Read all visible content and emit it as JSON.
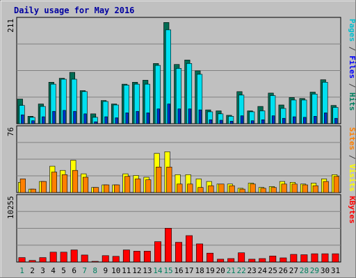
{
  "chart_data": {
    "type": "bar",
    "title": "Daily usage for May 2016",
    "categories": [
      "1",
      "2",
      "3",
      "4",
      "5",
      "6",
      "7",
      "8",
      "9",
      "10",
      "11",
      "12",
      "13",
      "14",
      "15",
      "16",
      "17",
      "18",
      "19",
      "20",
      "21",
      "22",
      "23",
      "24",
      "25",
      "26",
      "27",
      "28",
      "29",
      "30",
      "31"
    ],
    "weekend_days": [
      "1",
      "7",
      "8",
      "14",
      "15",
      "21",
      "22",
      "28",
      "29"
    ],
    "panels": [
      {
        "id": "hits-files-pages",
        "max_label": "211",
        "ymax": 211,
        "right_label": [
          "Pages",
          " / ",
          "Files",
          " / ",
          "Hits"
        ],
        "right_label_colors": [
          "#00c0d0",
          "#404040",
          "#0000ff",
          "#404040",
          "#008060"
        ],
        "series": [
          {
            "name": "Hits",
            "color": "#006c54",
            "values": [
              50,
              15,
              40,
              84,
              92,
              104,
              67,
              20,
              47,
              40,
              80,
              84,
              88,
              122,
              205,
              120,
              129,
              107,
              28,
              26,
              17,
              65,
              26,
              35,
              62,
              38,
              53,
              51,
              64,
              89,
              37
            ]
          },
          {
            "name": "Files",
            "color": "#00e0f0",
            "values": [
              37,
              13,
              35,
              80,
              90,
              90,
              65,
              13,
              45,
              38,
              78,
              80,
              80,
              118,
              190,
              112,
              122,
              100,
              24,
              20,
              15,
              58,
              24,
              26,
              57,
              31,
              48,
              48,
              60,
              84,
              33
            ]
          },
          {
            "name": "Pages",
            "color": "#0030c8",
            "values": [
              18,
              6,
              14,
              25,
              27,
              25,
              20,
              4,
              14,
              12,
              22,
              25,
              22,
              30,
              40,
              30,
              30,
              28,
              8,
              7,
              5,
              16,
              6,
              8,
              16,
              11,
              14,
              13,
              15,
              22,
              11
            ]
          }
        ]
      },
      {
        "id": "visits-sites",
        "max_label": "76",
        "ymax": 76,
        "right_label": [
          "Sites",
          " / ",
          "Visits"
        ],
        "right_label_colors": [
          "#ff8000",
          "#404040",
          "#ffff00"
        ],
        "series": [
          {
            "name": "Visits",
            "color": "#ffff00",
            "values": [
              12,
              4,
              13,
              31,
              26,
              38,
              22,
              6,
              9,
              9,
              22,
              20,
              18,
              46,
              48,
              21,
              21,
              16,
              13,
              10,
              10,
              5,
              11,
              6,
              7,
              13,
              12,
              10,
              11,
              16,
              21
            ]
          },
          {
            "name": "Sites",
            "color": "#ff8000",
            "values": [
              16,
              4,
              13,
              24,
              21,
              26,
              18,
              6,
              9,
              9,
              19,
              16,
              15,
              30,
              30,
              10,
              10,
              6,
              8,
              10,
              8,
              4,
              10,
              5,
              6,
              10,
              10,
              9,
              8,
              13,
              19
            ]
          }
        ]
      },
      {
        "id": "kbytes",
        "max_label": "10255",
        "ymax": 10255,
        "right_label": [
          "KBytes"
        ],
        "right_label_colors": [
          "#ff0000"
        ],
        "series": [
          {
            "name": "KBytes",
            "color": "#ff0000",
            "values": [
              700,
              250,
              700,
              1550,
              1550,
              1900,
              1100,
              100,
              1000,
              900,
              1900,
              1700,
              1700,
              3200,
              5300,
              3100,
              4150,
              2850,
              1400,
              450,
              550,
              1450,
              450,
              550,
              950,
              650,
              1200,
              1150,
              1300,
              1300,
              1300
            ]
          }
        ]
      }
    ]
  }
}
